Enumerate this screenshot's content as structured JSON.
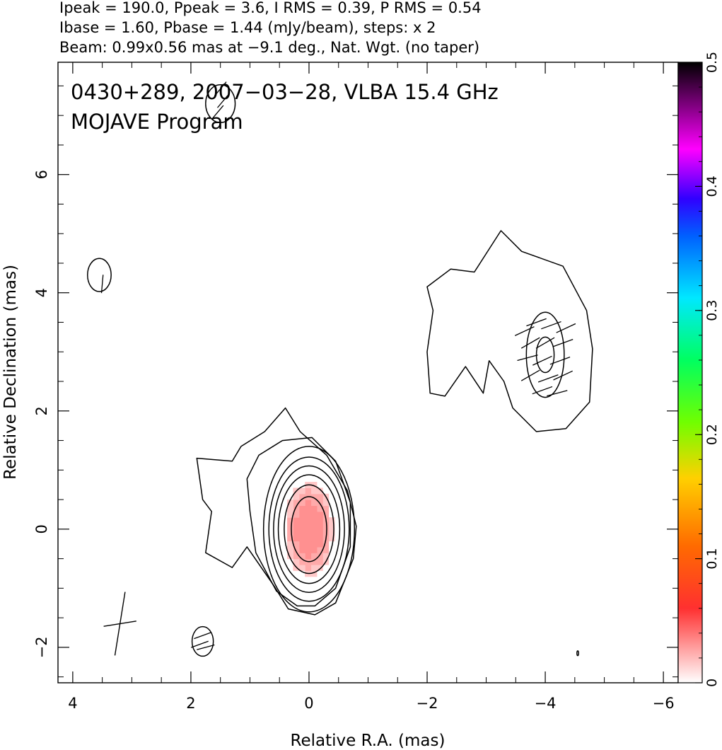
{
  "header": {
    "line1": "Ipeak = 190.0, Ppeak = 3.6, I RMS = 0.39, P RMS = 0.54",
    "line2": "Ibase = 1.60, Pbase = 1.44 (mJy/beam), steps: x 2",
    "line3": "Beam: 0.99x0.56 mas at −9.1 deg., Nat. Wgt. (no taper)"
  },
  "inset": {
    "line1": "0430+289, 2007−03−28, VLBA 15.4 GHz",
    "line2": "MOJAVE Program"
  },
  "chart_data": {
    "type": "contour",
    "title": "0430+289, 2007-03-28, VLBA 15.4 GHz",
    "subtitle": "MOJAVE Program",
    "xlabel": "Relative R.A. (mas)",
    "ylabel": "Relative Declination (mas)",
    "xlim": [
      4.25,
      -6.25
    ],
    "ylim": [
      -2.6,
      7.9
    ],
    "x_axis_inverted": true,
    "x_ticks": [
      4,
      2,
      0,
      -2,
      -4,
      -6
    ],
    "x_tick_labels": [
      "4",
      "2",
      "0",
      "−2",
      "−4",
      "−6"
    ],
    "y_ticks": [
      -2,
      0,
      2,
      4,
      6
    ],
    "y_tick_labels": [
      "−2",
      "0",
      "2",
      "4",
      "6"
    ],
    "grid": false,
    "intensity_peak_mJy_per_beam": 190.0,
    "polarization_peak_mJy_per_beam": 3.6,
    "intensity_base_mJy_per_beam": 1.6,
    "contour_step_factor": 2,
    "core": {
      "x": 0.0,
      "y": 0.0,
      "color": "#ff9999"
    },
    "core_contour_levels": [
      {
        "rx": 0.3,
        "ry": 0.55
      },
      {
        "rx": 0.42,
        "ry": 0.75
      },
      {
        "rx": 0.52,
        "ry": 0.92
      },
      {
        "rx": 0.6,
        "ry": 1.07
      },
      {
        "rx": 0.68,
        "ry": 1.22
      },
      {
        "rx": 0.77,
        "ry": 1.4
      }
    ],
    "outer_contour": [
      [
        0.75,
        1.65
      ],
      [
        1.15,
        1.4
      ],
      [
        1.3,
        1.15
      ],
      [
        1.9,
        1.2
      ],
      [
        1.8,
        0.5
      ],
      [
        1.65,
        0.3
      ],
      [
        1.75,
        -0.4
      ],
      [
        1.3,
        -0.65
      ],
      [
        1.05,
        -0.3
      ],
      [
        0.6,
        -0.95
      ],
      [
        0.35,
        -1.35
      ],
      [
        -0.1,
        -1.45
      ],
      [
        -0.45,
        -1.25
      ],
      [
        -0.75,
        -0.5
      ],
      [
        -0.8,
        0.05
      ],
      [
        -0.65,
        0.65
      ],
      [
        -0.3,
        1.25
      ],
      [
        0.15,
        1.65
      ],
      [
        0.4,
        2.05
      ],
      [
        0.75,
        1.65
      ]
    ],
    "contour_shape": "inner_envelope",
    "inner_envelope": [
      [
        1.05,
        0.85
      ],
      [
        1.0,
        0.3
      ],
      [
        0.9,
        -0.4
      ],
      [
        0.55,
        -1.05
      ],
      [
        0.2,
        -1.3
      ],
      [
        -0.1,
        -1.3
      ],
      [
        -0.45,
        -1.0
      ],
      [
        -0.7,
        -0.3
      ],
      [
        -0.7,
        0.45
      ],
      [
        -0.45,
        1.15
      ],
      [
        -0.05,
        1.55
      ],
      [
        0.45,
        1.5
      ],
      [
        0.85,
        1.25
      ],
      [
        1.05,
        0.85
      ]
    ],
    "jet_component": {
      "x": -4.0,
      "y": 2.95,
      "outer_contour": [
        [
          -2.0,
          4.1
        ],
        [
          -2.4,
          4.4
        ],
        [
          -2.8,
          4.35
        ],
        [
          -3.25,
          5.05
        ],
        [
          -3.6,
          4.7
        ],
        [
          -4.3,
          4.45
        ],
        [
          -4.7,
          3.7
        ],
        [
          -4.8,
          3.05
        ],
        [
          -4.75,
          2.15
        ],
        [
          -4.35,
          1.7
        ],
        [
          -3.85,
          1.65
        ],
        [
          -3.45,
          2.05
        ],
        [
          -3.3,
          2.5
        ],
        [
          -3.05,
          2.85
        ],
        [
          -2.95,
          2.3
        ],
        [
          -2.65,
          2.75
        ],
        [
          -2.3,
          2.25
        ],
        [
          -2.05,
          2.3
        ],
        [
          -2.0,
          3.0
        ],
        [
          -2.1,
          3.7
        ],
        [
          -2.0,
          4.1
        ]
      ],
      "inner_ellipses": [
        {
          "rx": 0.32,
          "ry": 0.72
        },
        {
          "rx": 0.15,
          "ry": 0.3
        }
      ],
      "evpa_ticks": [
        [
          -3.65,
          3.35,
          25
        ],
        [
          -3.85,
          3.5,
          20
        ],
        [
          -4.1,
          3.45,
          20
        ],
        [
          -4.35,
          3.4,
          25
        ],
        [
          -3.75,
          3.15,
          30
        ],
        [
          -4.0,
          3.15,
          30
        ],
        [
          -4.3,
          3.15,
          20
        ],
        [
          -3.7,
          2.9,
          15
        ],
        [
          -3.95,
          2.85,
          25
        ],
        [
          -4.25,
          2.85,
          20
        ],
        [
          -3.75,
          2.6,
          30
        ],
        [
          -4.05,
          2.55,
          20
        ],
        [
          -4.3,
          2.6,
          25
        ],
        [
          -3.95,
          2.35,
          20
        ],
        [
          -4.2,
          2.3,
          15
        ]
      ]
    },
    "extra_blobs": [
      {
        "x": 1.5,
        "y": 7.2,
        "rx": 0.25,
        "ry": 0.32,
        "evpa_ticks": [
          [
            1.5,
            7.45,
            50
          ],
          [
            1.45,
            7.25,
            50
          ],
          [
            1.55,
            7.05,
            50
          ]
        ]
      },
      {
        "x": 3.55,
        "y": 4.3,
        "rx": 0.2,
        "ry": 0.28,
        "evpa_ticks": [
          [
            3.5,
            4.15,
            85
          ]
        ]
      },
      {
        "x": 1.8,
        "y": -1.9,
        "rx": 0.18,
        "ry": 0.25,
        "evpa_ticks": [
          [
            1.8,
            -1.8,
            20
          ],
          [
            1.85,
            -1.95,
            20
          ],
          [
            1.75,
            -2.0,
            15
          ]
        ]
      },
      {
        "x": -4.55,
        "y": -2.1,
        "rx": 0.01,
        "ry": 0.04,
        "evpa_ticks": []
      }
    ],
    "beam": {
      "x": 3.2,
      "y": -1.6,
      "major_mas": 0.99,
      "minor_mas": 0.56,
      "pa_deg": -9.1
    },
    "colorbar": {
      "min": 0,
      "max": 0.5,
      "ticks": [
        0,
        0.1,
        0.2,
        0.3,
        0.4,
        0.5
      ],
      "tick_labels": [
        "0",
        "0.1",
        "0.2",
        "0.3",
        "0.4",
        "0.5"
      ],
      "colormap": "white-red-orange-yellow-green-cyan-blue-magenta-black"
    }
  }
}
